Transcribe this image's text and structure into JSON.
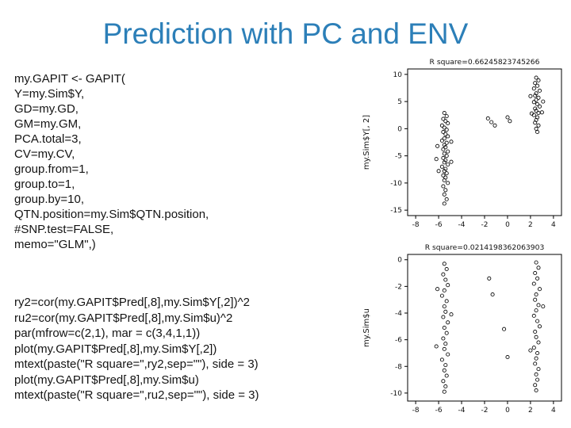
{
  "slide": {
    "title": "Prediction with PC and ENV",
    "code_block_1": [
      "my.GAPIT <- GAPIT(",
      "Y=my.Sim$Y,",
      "GD=my.GD,",
      "GM=my.GM,",
      "PCA.total=3,",
      "CV=my.CV,",
      "group.from=1,",
      "group.to=1,",
      "group.by=10,",
      "QTN.position=my.Sim$QTN.position,",
      "#SNP.test=FALSE,",
      "memo=\"GLM\",)"
    ],
    "code_block_2": [
      "ry2=cor(my.GAPIT$Pred[,8],my.Sim$Y[,2])^2",
      "ru2=cor(my.GAPIT$Pred[,8],my.Sim$u)^2",
      "par(mfrow=c(2,1), mar = c(3,4,1,1))",
      "plot(my.GAPIT$Pred[,8],my.Sim$Y[,2])",
      "mtext(paste(\"R square=\",ry2,sep=\"\"), side = 3)",
      "plot(my.GAPIT$Pred[,8],my.Sim$u)",
      "mtext(paste(\"R square=\",ru2,sep=\"\"), side = 3)"
    ]
  },
  "chart_data": [
    {
      "type": "scatter",
      "title": "R square=0.66245823745266",
      "xlabel": "",
      "ylabel": "my.Sim$Y[, 2]",
      "xlim": [
        -8.7,
        4.7
      ],
      "ylim": [
        -16,
        11
      ],
      "xticks": [
        -8,
        -6,
        -4,
        -2,
        0,
        2,
        4
      ],
      "yticks": [
        -15,
        -10,
        -5,
        0,
        5,
        10
      ],
      "grid": false,
      "legend": "none",
      "points": [
        [
          -5.5,
          2.9
        ],
        [
          -5.3,
          2.3
        ],
        [
          -5.6,
          1.8
        ],
        [
          -5.4,
          1.4
        ],
        [
          -5.2,
          1.0
        ],
        [
          -5.7,
          0.6
        ],
        [
          -5.5,
          0.2
        ],
        [
          -5.3,
          -0.2
        ],
        [
          -5.6,
          -0.6
        ],
        [
          -5.4,
          -1.0
        ],
        [
          -5.2,
          -1.4
        ],
        [
          -5.5,
          -1.8
        ],
        [
          -5.7,
          -2.2
        ],
        [
          -5.3,
          -2.6
        ],
        [
          -5.5,
          -3.0
        ],
        [
          -5.4,
          -3.4
        ],
        [
          -5.6,
          -3.8
        ],
        [
          -5.2,
          -4.2
        ],
        [
          -5.5,
          -4.6
        ],
        [
          -5.3,
          -5.0
        ],
        [
          -5.6,
          -5.4
        ],
        [
          -5.4,
          -5.8
        ],
        [
          -5.5,
          -6.2
        ],
        [
          -5.2,
          -6.6
        ],
        [
          -5.7,
          -7.0
        ],
        [
          -5.4,
          -7.4
        ],
        [
          -5.5,
          -7.8
        ],
        [
          -5.3,
          -8.2
        ],
        [
          -5.6,
          -8.6
        ],
        [
          -5.4,
          -9.0
        ],
        [
          -5.5,
          -9.5
        ],
        [
          -5.2,
          -10.0
        ],
        [
          -5.6,
          -10.6
        ],
        [
          -5.4,
          -11.3
        ],
        [
          -5.5,
          -12.1
        ],
        [
          -5.3,
          -13.0
        ],
        [
          -5.5,
          -13.8
        ],
        [
          -6.1,
          -3.2
        ],
        [
          -6.2,
          -5.6
        ],
        [
          -6.0,
          -7.8
        ],
        [
          -4.9,
          -2.4
        ],
        [
          -4.9,
          -6.1
        ],
        [
          -1.7,
          1.9
        ],
        [
          -1.4,
          1.2
        ],
        [
          -1.1,
          0.6
        ],
        [
          0.0,
          2.1
        ],
        [
          0.2,
          1.4
        ],
        [
          2.5,
          9.4
        ],
        [
          2.7,
          8.9
        ],
        [
          2.4,
          8.4
        ],
        [
          2.6,
          7.9
        ],
        [
          2.3,
          7.4
        ],
        [
          2.8,
          7.0
        ],
        [
          2.5,
          6.5
        ],
        [
          2.4,
          6.1
        ],
        [
          2.7,
          5.7
        ],
        [
          2.5,
          5.3
        ],
        [
          2.3,
          4.9
        ],
        [
          2.6,
          4.5
        ],
        [
          2.8,
          4.1
        ],
        [
          2.4,
          3.7
        ],
        [
          2.5,
          3.3
        ],
        [
          2.7,
          2.9
        ],
        [
          2.3,
          2.5
        ],
        [
          2.6,
          2.1
        ],
        [
          2.5,
          1.6
        ],
        [
          2.4,
          1.1
        ],
        [
          2.7,
          0.6
        ],
        [
          2.5,
          0.0
        ],
        [
          2.6,
          -0.6
        ],
        [
          3.1,
          5.0
        ],
        [
          3.0,
          3.0
        ],
        [
          2.0,
          6.0
        ],
        [
          2.1,
          2.8
        ]
      ]
    },
    {
      "type": "scatter",
      "title": "R square=0.0214198362063903",
      "xlabel": "",
      "ylabel": "my.Sim$u",
      "xlim": [
        -8.7,
        4.7
      ],
      "ylim": [
        -10.6,
        0.4
      ],
      "xticks": [
        -8,
        -6,
        -4,
        -2,
        0,
        2,
        4
      ],
      "yticks": [
        0,
        -2,
        -4,
        -6,
        -8,
        -10
      ],
      "grid": false,
      "legend": "none",
      "points": [
        [
          -5.5,
          -0.3
        ],
        [
          -5.3,
          -0.7
        ],
        [
          -5.6,
          -1.1
        ],
        [
          -5.4,
          -1.5
        ],
        [
          -5.2,
          -1.9
        ],
        [
          -5.5,
          -2.3
        ],
        [
          -5.7,
          -2.7
        ],
        [
          -5.3,
          -3.1
        ],
        [
          -5.5,
          -3.5
        ],
        [
          -5.4,
          -3.9
        ],
        [
          -5.6,
          -4.3
        ],
        [
          -5.2,
          -4.7
        ],
        [
          -5.5,
          -5.1
        ],
        [
          -5.3,
          -5.5
        ],
        [
          -5.6,
          -5.9
        ],
        [
          -5.4,
          -6.3
        ],
        [
          -5.5,
          -6.7
        ],
        [
          -5.2,
          -7.1
        ],
        [
          -5.7,
          -7.5
        ],
        [
          -5.4,
          -7.9
        ],
        [
          -5.5,
          -8.3
        ],
        [
          -5.3,
          -8.7
        ],
        [
          -5.6,
          -9.1
        ],
        [
          -5.4,
          -9.5
        ],
        [
          -5.5,
          -9.9
        ],
        [
          -6.1,
          -2.2
        ],
        [
          -6.2,
          -6.5
        ],
        [
          -4.9,
          -4.1
        ],
        [
          -1.6,
          -1.4
        ],
        [
          -1.3,
          -2.6
        ],
        [
          -0.3,
          -5.2
        ],
        [
          0.0,
          -7.3
        ],
        [
          2.5,
          -0.2
        ],
        [
          2.7,
          -0.6
        ],
        [
          2.4,
          -1.0
        ],
        [
          2.6,
          -1.4
        ],
        [
          2.3,
          -1.8
        ],
        [
          2.8,
          -2.2
        ],
        [
          2.5,
          -2.6
        ],
        [
          2.4,
          -3.0
        ],
        [
          2.7,
          -3.4
        ],
        [
          2.5,
          -3.8
        ],
        [
          2.3,
          -4.2
        ],
        [
          2.6,
          -4.6
        ],
        [
          2.8,
          -5.0
        ],
        [
          2.4,
          -5.4
        ],
        [
          2.5,
          -5.8
        ],
        [
          2.7,
          -6.2
        ],
        [
          2.3,
          -6.6
        ],
        [
          2.6,
          -7.0
        ],
        [
          2.5,
          -7.4
        ],
        [
          2.4,
          -7.8
        ],
        [
          2.7,
          -8.2
        ],
        [
          2.5,
          -8.6
        ],
        [
          2.6,
          -9.0
        ],
        [
          2.4,
          -9.4
        ],
        [
          2.5,
          -9.8
        ],
        [
          3.1,
          -3.5
        ],
        [
          2.0,
          -6.8
        ]
      ]
    }
  ]
}
